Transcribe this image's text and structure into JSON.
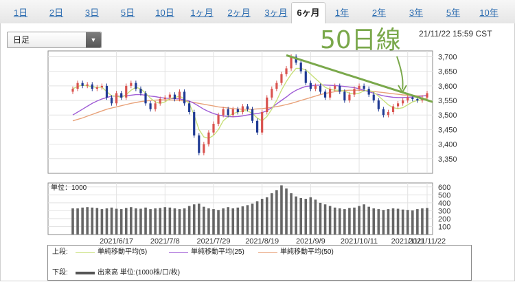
{
  "tabs": [
    "1日",
    "2日",
    "3日",
    "5日",
    "10日",
    "1ヶ月",
    "2ヶ月",
    "3ヶ月",
    "6ヶ月",
    "1年",
    "2年",
    "3年",
    "5年",
    "10年"
  ],
  "active_tab": "6ヶ月",
  "period_select": {
    "value": "日足"
  },
  "timestamp": "21/11/22 15:59 CST",
  "annotation": {
    "text": "50日線"
  },
  "colors": {
    "up": "#d9534f",
    "down": "#1f3a93",
    "ma5": "#c8e07a",
    "ma25": "#a05ed6",
    "ma50": "#e8a27a",
    "trendline": "#7aa84b",
    "volume": "#666666"
  },
  "chart_data": [
    {
      "type": "candlestick",
      "title": "",
      "ylim": [
        3300,
        3720
      ],
      "yticks": [
        "3,350",
        "3,400",
        "3,450",
        "3,500",
        "3,550",
        "3,600",
        "3,650",
        "3,700"
      ],
      "ytick_values": [
        3350,
        3400,
        3450,
        3500,
        3550,
        3600,
        3650,
        3700
      ],
      "x_dates": [
        "2021/6/17",
        "2021/7/8",
        "2021/7/29",
        "2021/8/19",
        "2021/9/9",
        "2021/10/11",
        "2021/11/1",
        "2021/11/22"
      ],
      "close_approx": [
        3590,
        3610,
        3600,
        3605,
        3590,
        3595,
        3600,
        3560,
        3540,
        3575,
        3560,
        3600,
        3610,
        3590,
        3575,
        3540,
        3520,
        3540,
        3555,
        3560,
        3570,
        3555,
        3580,
        3540,
        3510,
        3430,
        3370,
        3400,
        3440,
        3470,
        3500,
        3520,
        3500,
        3520,
        3510,
        3530,
        3520,
        3480,
        3440,
        3510,
        3560,
        3590,
        3610,
        3640,
        3660,
        3700,
        3680,
        3650,
        3610,
        3590,
        3600,
        3580,
        3560,
        3590,
        3600,
        3580,
        3550,
        3570,
        3590,
        3600,
        3590,
        3570,
        3550,
        3520,
        3500,
        3510,
        3530,
        3540,
        3550,
        3560,
        3555,
        3550,
        3560,
        3575
      ],
      "ma5_approx": [
        3590,
        3598,
        3603,
        3600,
        3598,
        3594,
        3596,
        3580,
        3566,
        3565,
        3560,
        3570,
        3585,
        3595,
        3590,
        3575,
        3558,
        3545,
        3540,
        3545,
        3557,
        3560,
        3565,
        3555,
        3540,
        3500,
        3450,
        3425,
        3420,
        3430,
        3450,
        3480,
        3495,
        3505,
        3510,
        3515,
        3515,
        3505,
        3490,
        3480,
        3495,
        3520,
        3550,
        3585,
        3615,
        3640,
        3660,
        3660,
        3655,
        3640,
        3625,
        3610,
        3595,
        3588,
        3585,
        3585,
        3582,
        3575,
        3572,
        3575,
        3583,
        3585,
        3578,
        3565,
        3550,
        3535,
        3525,
        3522,
        3525,
        3535,
        3545,
        3550,
        3553,
        3558
      ],
      "ma25_approx": [
        3500,
        3510,
        3520,
        3530,
        3540,
        3548,
        3555,
        3560,
        3565,
        3565,
        3565,
        3566,
        3568,
        3570,
        3570,
        3568,
        3565,
        3563,
        3560,
        3558,
        3557,
        3556,
        3555,
        3552,
        3548,
        3540,
        3530,
        3520,
        3512,
        3505,
        3500,
        3497,
        3495,
        3494,
        3495,
        3497,
        3500,
        3503,
        3505,
        3508,
        3515,
        3525,
        3538,
        3550,
        3562,
        3575,
        3585,
        3592,
        3598,
        3600,
        3602,
        3603,
        3603,
        3602,
        3601,
        3600,
        3598,
        3596,
        3594,
        3590,
        3585,
        3580,
        3575,
        3570,
        3566,
        3563,
        3561,
        3560,
        3560,
        3561,
        3562,
        3563,
        3565,
        3567
      ],
      "ma50_approx": [
        3480,
        3485,
        3490,
        3496,
        3502,
        3508,
        3514,
        3520,
        3524,
        3528,
        3532,
        3536,
        3540,
        3543,
        3546,
        3548,
        3550,
        3551,
        3552,
        3552,
        3552,
        3551,
        3550,
        3548,
        3546,
        3543,
        3540,
        3537,
        3534,
        3531,
        3528,
        3526,
        3524,
        3522,
        3521,
        3520,
        3520,
        3520,
        3521,
        3522,
        3524,
        3526,
        3529,
        3532,
        3536,
        3540,
        3545,
        3550,
        3555,
        3560,
        3565,
        3570,
        3574,
        3577,
        3580,
        3582,
        3584,
        3585,
        3585,
        3585,
        3584,
        3583,
        3581,
        3579,
        3577,
        3575,
        3573,
        3571,
        3569,
        3568,
        3567,
        3566,
        3566,
        3566
      ]
    },
    {
      "type": "bar",
      "title": "",
      "unit_label": "単位：1000",
      "ylim": [
        0,
        650
      ],
      "yticks": [
        "100",
        "200",
        "300",
        "400",
        "500",
        "600"
      ],
      "ytick_values": [
        100,
        200,
        300,
        400,
        500,
        600
      ],
      "values": [
        330,
        330,
        340,
        345,
        340,
        335,
        320,
        330,
        340,
        325,
        320,
        335,
        345,
        330,
        325,
        340,
        320,
        330,
        335,
        345,
        340,
        330,
        320,
        330,
        360,
        380,
        390,
        350,
        330,
        320,
        310,
        330,
        345,
        330,
        340,
        355,
        370,
        390,
        420,
        450,
        470,
        520,
        560,
        620,
        580,
        520,
        480,
        460,
        450,
        470,
        440,
        400,
        380,
        360,
        340,
        330,
        320,
        335,
        340,
        360,
        380,
        350,
        330,
        320,
        310,
        320,
        330,
        325,
        315,
        310,
        305,
        320,
        330,
        335
      ]
    }
  ],
  "legend": {
    "upper_label": "上段:",
    "lower_label": "下段:",
    "ma5": "単純移動平均(5)",
    "ma25": "単純移動平均(25)",
    "ma50": "単純移動平均(50)",
    "volume": "出来高 単位:(1000株/口/枚)"
  }
}
